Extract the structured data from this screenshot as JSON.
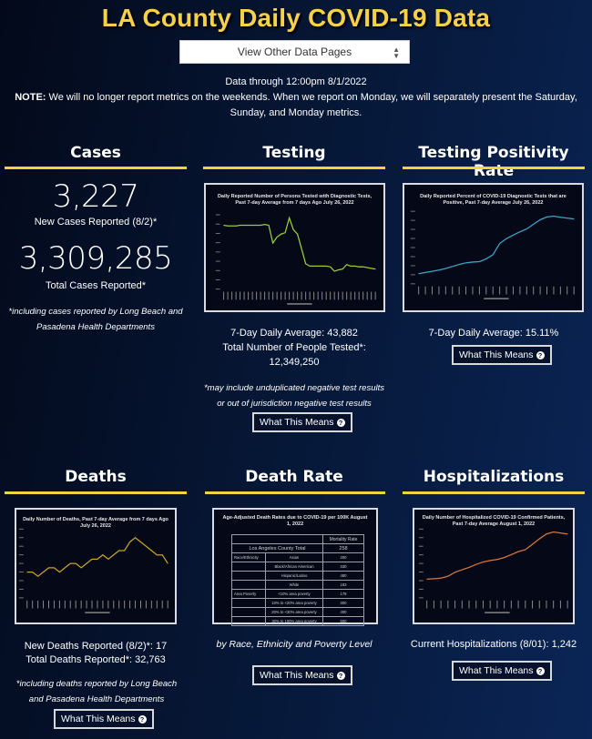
{
  "header": {
    "title": "LA County Daily COVID-19 Data",
    "select_label": "View Other Data Pages",
    "select_icon": "updown-arrows-icon",
    "data_through": "Data through 12:00pm 8/1/2022",
    "note_label": "NOTE:",
    "note_text": " We will no longer report metrics on the weekends. When we report on Monday, we will separately present the Saturday, Sunday, and Monday metrics."
  },
  "colors": {
    "accent": "#f1d33d",
    "title": "#f7d04a",
    "background": "#061634"
  },
  "cases": {
    "title": "Cases",
    "new_cases": "3,227",
    "new_cases_label": "New Cases Reported (8/2)*",
    "total_cases": "3,309,285",
    "total_cases_label": "Total Cases Reported*",
    "footnote": "*including cases reported by Long Beach and Pasadena Health Departments"
  },
  "testing": {
    "title": "Testing",
    "chart_title": "Daily Reported Number of Persons Tested with Diagnostic Tests, Past 7-day Average from 7 days Ago July 26, 2022",
    "avg": "7-Day Daily Average: 43,882",
    "total_label": "Total Number of People Tested*:",
    "total": "12,349,250",
    "footnote": "*may include unduplicated negative test results or out of jurisdiction negative test results",
    "button": "What This Means"
  },
  "positivity": {
    "title": "Testing Positivity Rate",
    "chart_title": "Daily Reported Percent of COVID-19 Diagnostic Tests that are Positive, Past 7-day Average July 26, 2022",
    "avg": "7-Day Daily Average: 15.11%",
    "button": "What This Means"
  },
  "deaths": {
    "title": "Deaths",
    "chart_title": "Daily Number of Deaths, Past 7-day Average from 7 days Ago July 26, 2022",
    "new_deaths": "New Deaths Reported (8/2)*: 17",
    "total_deaths": "Total Deaths Reported*: 32,763",
    "footnote": "*including deaths reported by Long Beach and Pasadena Health Departments",
    "button": "What This Means"
  },
  "death_rate": {
    "title": "Death Rate",
    "chart_title": "Age-Adjusted Death Rates due to COVID-19 per 100K August 1, 2022",
    "table": {
      "header": "Mortality Rate",
      "total_label": "Los Angeles County Total",
      "total_value": "258",
      "rows": [
        {
          "group": "Race/Ethnicity",
          "label": "Asian",
          "value": "200"
        },
        {
          "group": "",
          "label": "Black/African American",
          "value": "330"
        },
        {
          "group": "",
          "label": "Hispanic/Latino",
          "value": "480"
        },
        {
          "group": "",
          "label": "White",
          "value": "183"
        },
        {
          "group": "Area Poverty",
          "label": "<10% area poverty",
          "value": "179"
        },
        {
          "group": "",
          "label": "10% to <20% area poverty",
          "value": "300"
        },
        {
          "group": "",
          "label": "20% to <30% area poverty",
          "value": "400"
        },
        {
          "group": "",
          "label": "30% to 100% area poverty",
          "value": "500"
        }
      ]
    },
    "caption": "by Race, Ethnicity and Poverty Level",
    "button": "What This Means"
  },
  "hospitalizations": {
    "title": "Hospitalizations",
    "chart_title": "Daily Number of Hospitalized COVID-19 Confirmed Patients, Past 7-day Average August 1, 2022",
    "current": "Current Hospitalizations (8/01): 1,242",
    "button": "What This Means"
  },
  "chart_data": [
    {
      "type": "line",
      "title": "Daily Reported Number of Persons Tested with Diagnostic Tests, Past 7-day Average from 7 days Ago",
      "subtitle": "July 26, 2022",
      "color": "#9acd32",
      "ylim": [
        0,
        100
      ],
      "values": [
        86,
        85,
        85,
        85,
        86,
        86,
        86,
        86,
        86,
        86,
        87,
        86,
        62,
        70,
        74,
        76,
        96,
        80,
        74,
        54,
        34,
        31,
        31,
        31,
        31,
        31,
        30,
        24,
        26,
        27,
        33,
        31,
        31,
        30,
        30,
        29,
        28,
        27
      ]
    },
    {
      "type": "line",
      "title": "Daily Reported Percent of COVID-19 Diagnostic Tests that are Positive, Past 7-day Average",
      "subtitle": "July 26, 2022",
      "color": "#3aa6c8",
      "ylim": [
        0,
        18
      ],
      "values": [
        2.5,
        2.8,
        3.1,
        3.4,
        3.8,
        4.3,
        4.8,
        5.2,
        5.4,
        5.5,
        6.2,
        7.2,
        10.0,
        11.2,
        12.1,
        12.9,
        13.6,
        14.8,
        15.9,
        16.6,
        16.8,
        16.5,
        16.3,
        16.1
      ]
    },
    {
      "type": "line",
      "title": "Daily Number of Deaths, Past 7-day Average from 7 days Ago",
      "subtitle": "July 26, 2022",
      "color": "#c9a227",
      "ylim": [
        0,
        8
      ],
      "values": [
        3,
        3,
        2.5,
        3,
        3.5,
        3.5,
        3,
        3.5,
        4,
        4,
        3.5,
        4,
        4.5,
        4.5,
        5,
        4.5,
        5,
        5.5,
        5.5,
        6.5,
        7,
        6.5,
        6,
        5.5,
        5,
        5,
        4
      ]
    },
    {
      "type": "line",
      "title": "Daily Number of Hospitalized COVID-19 Confirmed Patients, Past 7-day Average",
      "subtitle": "August 1, 2022",
      "color": "#d9773a",
      "ylim": [
        0,
        1400
      ],
      "values": [
        380,
        390,
        400,
        440,
        520,
        570,
        620,
        680,
        730,
        760,
        780,
        820,
        880,
        940,
        980,
        1090,
        1200,
        1300,
        1340,
        1320,
        1300
      ]
    }
  ]
}
